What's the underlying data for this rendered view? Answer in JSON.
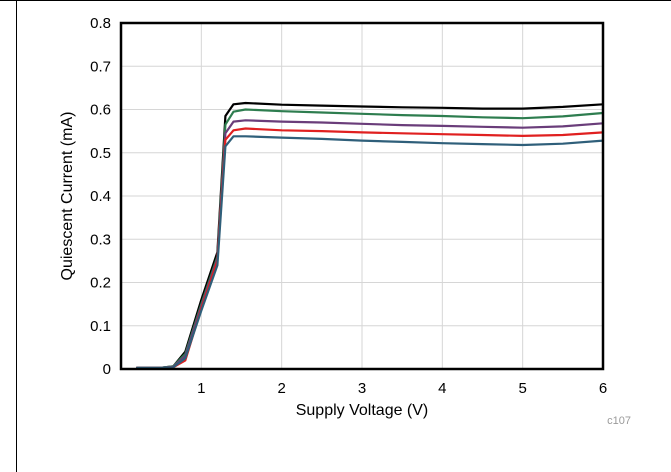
{
  "chart_data": {
    "type": "line",
    "xlabel": "Supply Voltage (V)",
    "ylabel": "Quiescent Current (mA)",
    "xlim": [
      0,
      6
    ],
    "ylim": [
      0,
      0.8
    ],
    "x_ticks": [
      "1",
      "2",
      "3",
      "4",
      "5",
      "6"
    ],
    "y_ticks": [
      "0",
      "0.1",
      "0.2",
      "0.3",
      "0.4",
      "0.5",
      "0.6",
      "0.7",
      "0.8"
    ],
    "grid": true,
    "legend": "none",
    "figure_id": "c107",
    "series": [
      {
        "color": "#000000",
        "x": [
          0.2,
          0.5,
          0.65,
          0.8,
          1.0,
          1.2,
          1.3,
          1.4,
          1.55,
          2.0,
          2.5,
          3.0,
          3.5,
          4.0,
          4.5,
          5.0,
          5.5,
          6.0
        ],
        "y": [
          0.003,
          0.003,
          0.006,
          0.04,
          0.16,
          0.27,
          0.585,
          0.612,
          0.615,
          0.611,
          0.609,
          0.607,
          0.605,
          0.604,
          0.602,
          0.602,
          0.606,
          0.612
        ]
      },
      {
        "color": "#2e7d4f",
        "x": [
          0.2,
          0.5,
          0.65,
          0.8,
          1.0,
          1.2,
          1.3,
          1.4,
          1.55,
          2.0,
          2.5,
          3.0,
          3.5,
          4.0,
          4.5,
          5.0,
          5.5,
          6.0
        ],
        "y": [
          0.003,
          0.003,
          0.006,
          0.035,
          0.15,
          0.26,
          0.565,
          0.595,
          0.6,
          0.596,
          0.593,
          0.59,
          0.587,
          0.585,
          0.582,
          0.58,
          0.584,
          0.592
        ]
      },
      {
        "color": "#6a3d7a",
        "x": [
          0.2,
          0.5,
          0.65,
          0.8,
          1.0,
          1.2,
          1.3,
          1.4,
          1.55,
          2.0,
          2.5,
          3.0,
          3.5,
          4.0,
          4.5,
          5.0,
          5.5,
          6.0
        ],
        "y": [
          0.003,
          0.003,
          0.005,
          0.03,
          0.145,
          0.255,
          0.545,
          0.572,
          0.575,
          0.572,
          0.57,
          0.567,
          0.564,
          0.562,
          0.56,
          0.558,
          0.561,
          0.568
        ]
      },
      {
        "color": "#e02020",
        "x": [
          0.2,
          0.5,
          0.65,
          0.8,
          1.0,
          1.2,
          1.3,
          1.4,
          1.55,
          2.0,
          2.5,
          3.0,
          3.5,
          4.0,
          4.5,
          5.0,
          5.5,
          6.0
        ],
        "y": [
          0.003,
          0.003,
          0.004,
          0.02,
          0.14,
          0.25,
          0.53,
          0.552,
          0.556,
          0.552,
          0.55,
          0.547,
          0.545,
          0.543,
          0.541,
          0.539,
          0.541,
          0.547
        ]
      },
      {
        "color": "#2f5f7a",
        "x": [
          0.2,
          0.5,
          0.65,
          0.8,
          1.0,
          1.2,
          1.3,
          1.4,
          1.55,
          2.0,
          2.5,
          3.0,
          3.5,
          4.0,
          4.5,
          5.0,
          5.5,
          6.0
        ],
        "y": [
          0.003,
          0.003,
          0.004,
          0.025,
          0.135,
          0.24,
          0.515,
          0.538,
          0.538,
          0.535,
          0.532,
          0.528,
          0.525,
          0.522,
          0.52,
          0.518,
          0.521,
          0.528
        ]
      }
    ]
  }
}
